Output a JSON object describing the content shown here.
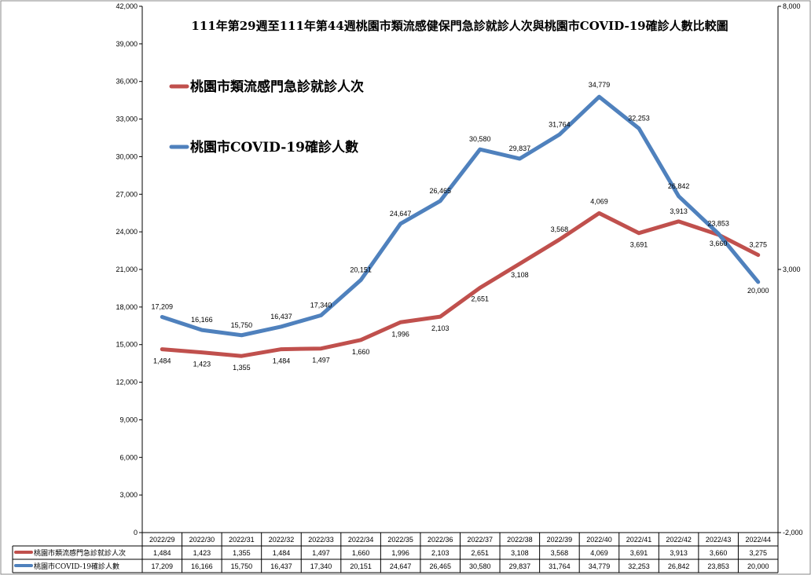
{
  "chart_data": {
    "type": "line",
    "title": "111年第29週至111年第44週桃園市類流感健保門急診就診人次與桃園市COVID-19確診人數比較圖",
    "categories": [
      "2022/29",
      "2022/30",
      "2022/31",
      "2022/32",
      "2022/33",
      "2022/34",
      "2022/35",
      "2022/36",
      "2022/37",
      "2022/38",
      "2022/39",
      "2022/40",
      "2022/41",
      "2022/42",
      "2022/43",
      "2022/44"
    ],
    "left_axis": {
      "min": 0,
      "max": 42000,
      "step": 3000,
      "ticks": [
        "0",
        "3,000",
        "6,000",
        "9,000",
        "12,000",
        "15,000",
        "18,000",
        "21,000",
        "24,000",
        "27,000",
        "30,000",
        "33,000",
        "36,000",
        "39,000",
        "42,000"
      ]
    },
    "right_axis": {
      "min": -2000,
      "max": 8000,
      "ticks": [
        "-2,000",
        "3,000",
        "8,000"
      ]
    },
    "series": [
      {
        "name": "桃園市類流感門急診就診人次",
        "color": "#C0504D",
        "axis": "right",
        "values": [
          1484,
          1423,
          1355,
          1484,
          1497,
          1660,
          1996,
          2103,
          2651,
          3108,
          3568,
          4069,
          3691,
          3913,
          3660,
          3275
        ],
        "labels": [
          "1,484",
          "1,423",
          "1,355",
          "1,484",
          "1,497",
          "1,660",
          "1,996",
          "2,103",
          "2,651",
          "3,108",
          "3,568",
          "4,069",
          "3,691",
          "3,913",
          "3,660",
          "3,275"
        ]
      },
      {
        "name": "桃園市COVID-19確診人數",
        "color": "#4F81BD",
        "axis": "left",
        "values": [
          17209,
          16166,
          15750,
          16437,
          17340,
          20151,
          24647,
          26465,
          30580,
          29837,
          31764,
          34779,
          32253,
          26842,
          23853,
          20000
        ],
        "labels": [
          "17,209",
          "16,166",
          "15,750",
          "16,437",
          "17,340",
          "20,151",
          "24,647",
          "26,465",
          "30,580",
          "29,837",
          "31,764",
          "34,779",
          "32,253",
          "26,842",
          "23,853",
          "20,000"
        ]
      }
    ],
    "table": {
      "row_names": [
        "桃園市類流感門急診就診人次",
        "桃園市COVID-19確診人數"
      ]
    },
    "legend_placement": "top-left",
    "grid": false
  }
}
